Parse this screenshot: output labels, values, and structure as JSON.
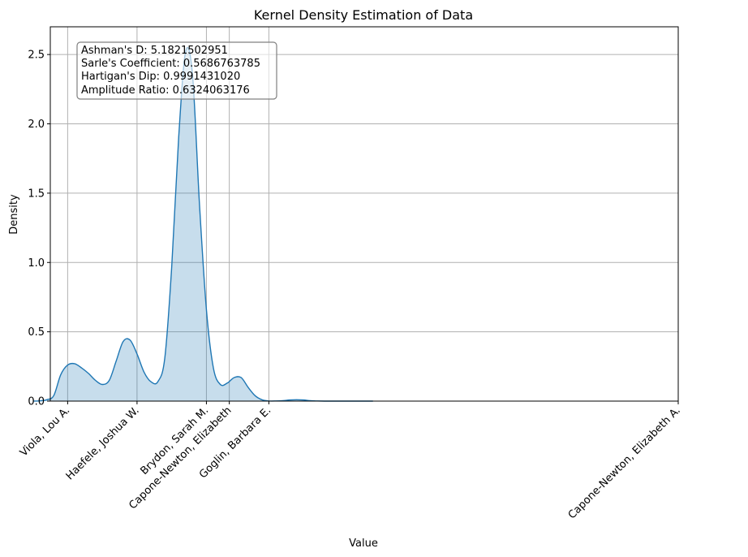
{
  "chart_data": {
    "type": "area",
    "title": "Kernel Density Estimation of Data",
    "xlabel": "Value",
    "ylabel": "Density",
    "xlim": [
      -0.25,
      8.8
    ],
    "ylim": [
      0,
      2.7
    ],
    "grid": true,
    "x_ticks": [
      {
        "x": 0.0,
        "label": "Viola, Lou A."
      },
      {
        "x": 1.0,
        "label": "Haefele, Joshua W."
      },
      {
        "x": 2.0,
        "label": "Brydon, Sarah M."
      },
      {
        "x": 2.33,
        "label": "Capone-Newton, Elizabeth"
      },
      {
        "x": 2.9,
        "label": "Goglin, Barbara E."
      },
      {
        "x": 8.8,
        "label": "Capone-Newton, Elizabeth A."
      }
    ],
    "y_ticks": [
      {
        "y": 0.0,
        "label": "0.0"
      },
      {
        "y": 0.5,
        "label": "0.5"
      },
      {
        "y": 1.0,
        "label": "1.0"
      },
      {
        "y": 1.5,
        "label": "1.5"
      },
      {
        "y": 2.0,
        "label": "2.0"
      },
      {
        "y": 2.5,
        "label": "2.5"
      }
    ],
    "series": [
      {
        "x": [
          -0.5,
          -0.4,
          -0.3,
          -0.2,
          -0.1,
          0.0,
          0.1,
          0.2,
          0.3,
          0.4,
          0.5,
          0.6,
          0.7,
          0.8,
          0.9,
          1.0,
          1.1,
          1.2,
          1.3,
          1.4,
          1.5,
          1.6,
          1.7,
          1.8,
          1.9,
          2.0,
          2.1,
          2.2,
          2.3,
          2.4,
          2.5,
          2.6,
          2.7,
          2.8,
          2.9,
          3.0,
          3.1,
          3.2,
          3.3,
          3.4,
          3.5,
          3.6,
          3.7,
          3.8,
          3.9,
          4.0,
          4.1,
          4.2,
          4.3,
          4.4
        ],
        "y": [
          0.0,
          0.002,
          0.01,
          0.04,
          0.19,
          0.26,
          0.27,
          0.24,
          0.2,
          0.15,
          0.12,
          0.15,
          0.29,
          0.43,
          0.44,
          0.34,
          0.21,
          0.14,
          0.14,
          0.31,
          0.97,
          1.9,
          2.52,
          2.35,
          1.42,
          0.66,
          0.24,
          0.12,
          0.13,
          0.17,
          0.17,
          0.1,
          0.04,
          0.01,
          0.001,
          0.001,
          0.003,
          0.008,
          0.01,
          0.008,
          0.003,
          0.001,
          0.0,
          0.0,
          0.0,
          0.0,
          0.0,
          0.0,
          0.0,
          0.0
        ]
      }
    ],
    "colors": {
      "line": "#1f77b4",
      "fill": "#1f77b4",
      "grid": "#b0b0b0"
    },
    "annotation_lines": [
      "Ashman's D: 5.1821502951",
      "Sarle's Coefficient: 0.5686763785",
      "Hartigan's Dip: 0.9991431020",
      "Amplitude Ratio: 0.6324063176"
    ]
  }
}
